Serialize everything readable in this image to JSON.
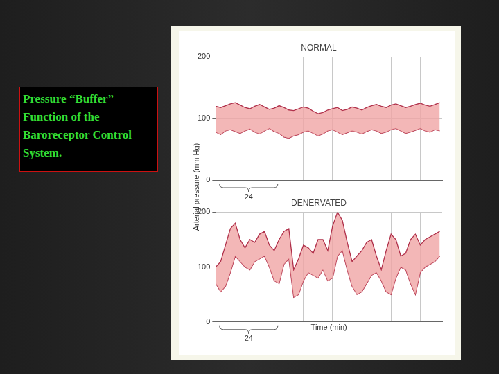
{
  "heading": "Pressure “Buffer” Function of the Baroreceptor Control System.",
  "ylabel": "Arterial pressure (mm Hg)",
  "chart_data": [
    {
      "type": "line",
      "title": "NORMAL",
      "x": [
        0,
        2,
        4,
        6,
        8,
        10,
        12,
        14,
        16,
        18,
        20,
        22,
        24,
        26,
        28,
        30,
        32,
        34,
        36,
        38,
        40,
        42,
        44,
        46,
        48,
        50,
        52,
        54,
        56,
        58,
        60,
        62,
        64,
        66,
        68,
        70,
        72,
        74,
        76,
        78,
        80,
        82,
        84,
        86,
        88,
        90,
        92
      ],
      "series": [
        {
          "color": "#b0304a",
          "values": [
            120,
            118,
            121,
            124,
            126,
            122,
            118,
            116,
            120,
            123,
            119,
            115,
            117,
            121,
            118,
            114,
            113,
            116,
            119,
            117,
            112,
            108,
            110,
            114,
            116,
            118,
            113,
            115,
            119,
            117,
            114,
            118,
            121,
            123,
            120,
            118,
            122,
            124,
            121,
            118,
            120,
            123,
            125,
            122,
            120,
            123,
            126
          ]
        },
        {
          "color": "#b0304a",
          "values": [
            78,
            74,
            80,
            82,
            79,
            76,
            80,
            83,
            78,
            75,
            80,
            84,
            79,
            76,
            70,
            68,
            72,
            74,
            78,
            80,
            76,
            72,
            75,
            80,
            82,
            78,
            74,
            77,
            80,
            78,
            75,
            79,
            82,
            80,
            76,
            78,
            82,
            84,
            80,
            76,
            78,
            81,
            84,
            80,
            78,
            82,
            80
          ]
        }
      ],
      "xlim": [
        0,
        93
      ],
      "xticks": [
        0,
        12,
        24,
        36,
        48,
        60,
        72,
        84
      ],
      "ylim": [
        0,
        200
      ],
      "yticks": [
        0,
        100,
        200
      ],
      "grid": true,
      "tick_labels": "y",
      "annotations": [
        {
          "text": "24",
          "x_start": 1.5,
          "x_end": 25.5
        }
      ]
    },
    {
      "type": "line",
      "title": "DENERVATED",
      "xlabel": "Time (min)",
      "x": [
        0,
        2,
        4,
        6,
        8,
        10,
        12,
        14,
        16,
        18,
        20,
        22,
        24,
        26,
        28,
        30,
        32,
        34,
        36,
        38,
        40,
        42,
        44,
        46,
        48,
        50,
        52,
        54,
        56,
        58,
        60,
        62,
        64,
        66,
        68,
        70,
        72,
        74,
        76,
        78,
        80,
        82,
        84,
        86,
        88,
        90,
        92
      ],
      "series": [
        {
          "color": "#b0304a",
          "values": [
            100,
            110,
            140,
            170,
            180,
            150,
            135,
            150,
            145,
            160,
            165,
            140,
            130,
            150,
            165,
            170,
            95,
            115,
            140,
            135,
            125,
            150,
            150,
            130,
            175,
            200,
            185,
            145,
            110,
            120,
            130,
            145,
            150,
            120,
            95,
            130,
            160,
            150,
            120,
            125,
            150,
            160,
            140,
            150,
            155,
            160,
            165
          ]
        },
        {
          "color": "#b0304a",
          "values": [
            70,
            55,
            65,
            90,
            120,
            110,
            100,
            95,
            110,
            115,
            120,
            100,
            75,
            70,
            105,
            115,
            45,
            50,
            75,
            90,
            85,
            80,
            95,
            75,
            80,
            120,
            130,
            95,
            65,
            50,
            55,
            70,
            85,
            90,
            75,
            55,
            50,
            80,
            100,
            95,
            70,
            50,
            90,
            100,
            105,
            110,
            120
          ]
        }
      ],
      "xlim": [
        0,
        93
      ],
      "xticks": [
        0,
        12,
        24,
        36,
        48,
        60,
        72,
        84
      ],
      "ylim": [
        0,
        200
      ],
      "yticks": [
        0,
        100,
        200
      ],
      "grid": true,
      "tick_labels": "y",
      "annotations": [
        {
          "text": "24",
          "x_start": 1.5,
          "x_end": 25.5
        }
      ]
    }
  ]
}
